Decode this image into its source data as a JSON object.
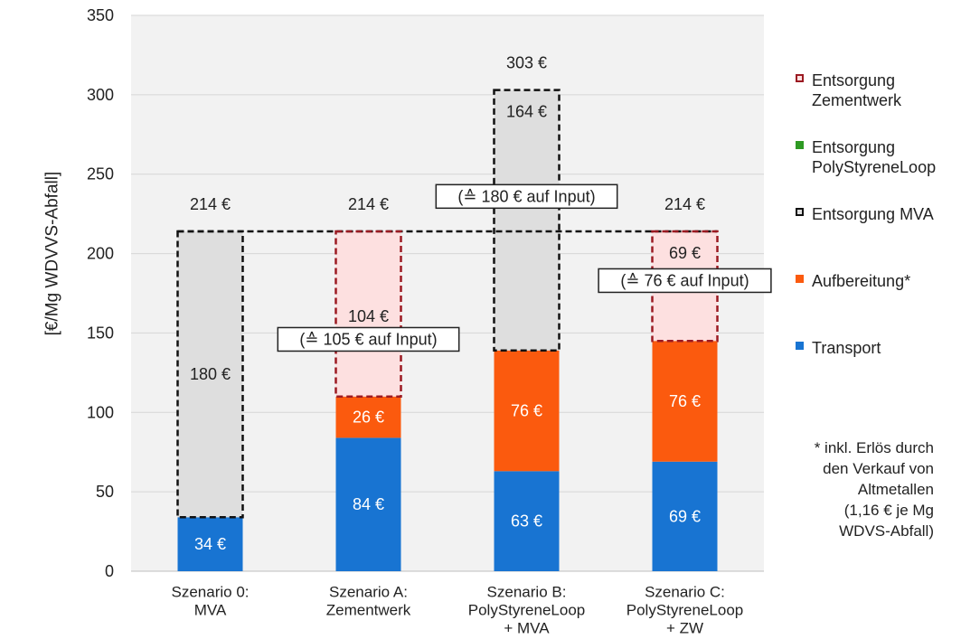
{
  "chart_data": {
    "type": "bar",
    "stacked": true,
    "ylabel": "[€/Mg WDVVS-Abfall]",
    "ylim": [
      0,
      350
    ],
    "yticks": [
      0,
      50,
      100,
      150,
      200,
      250,
      300,
      350
    ],
    "grid": true,
    "legend_position": "right",
    "categories": [
      [
        "Szenario 0:",
        "MVA"
      ],
      [
        "Szenario A:",
        "Zementwerk"
      ],
      [
        "Szenario B:",
        "PolyStyreneLoop",
        "+ MVA"
      ],
      [
        "Szenario C:",
        "PolyStyreneLoop",
        "+ ZW"
      ]
    ],
    "totals": [
      "214 €",
      "214 €",
      "303 €",
      "214 €"
    ],
    "reference_line": 214,
    "series": [
      {
        "key": "transport",
        "name": "Transport",
        "color": "#1874d2",
        "style": "solid",
        "values": [
          34,
          84,
          63,
          69
        ],
        "labels": [
          "34 €",
          "84 €",
          "63 €",
          "69 €"
        ]
      },
      {
        "key": "aufbereitung",
        "name": "Aufbereitung*",
        "color": "#fb5a0e",
        "style": "solid",
        "values": [
          0,
          26,
          76,
          76
        ],
        "labels": [
          "",
          "26 €",
          "76 €",
          "76 €"
        ]
      },
      {
        "key": "mva",
        "name": "Entsorgung MVA",
        "color": "#dedede",
        "border": "#111111",
        "style": "dashed",
        "values": [
          180,
          0,
          164,
          0
        ],
        "labels": [
          "180 €",
          "",
          "164 €",
          ""
        ]
      },
      {
        "key": "psl",
        "name": "Entsorgung PolyStyreneLoop",
        "color": "#2e9a23",
        "style": "solid",
        "values": [
          0,
          0,
          0,
          0
        ],
        "labels": [
          "",
          "",
          "",
          ""
        ]
      },
      {
        "key": "zement",
        "name": "Entsorgung Zementwerk",
        "color": "#fde0e0",
        "border": "#9b1a22",
        "style": "dashed",
        "values": [
          0,
          104,
          0,
          69
        ],
        "labels": [
          "",
          "104 €",
          "",
          "69 €"
        ]
      }
    ],
    "input_notes": [
      "",
      "(≙ 105 € auf Input)",
      "(≙ 180 € auf Input)",
      "(≙ 76 € auf Input)"
    ],
    "footnote": "* inkl. Erlös durch\nden Verkauf von\nAltmetallen\n(1,16 € je Mg\nWDVS-Abfall)"
  },
  "legend": [
    {
      "name": "Entsorgung Zementwerk",
      "lines": [
        "Entsorgung",
        "Zementwerk"
      ],
      "color": "#fde0e0",
      "border": "#9b1a22",
      "style": "dashed"
    },
    {
      "name": "Entsorgung PolyStyreneLoop",
      "lines": [
        "Entsorgung",
        "PolyStyreneLoop"
      ],
      "color": "#2e9a23",
      "border": "#2e9a23",
      "style": "solid"
    },
    {
      "name": "Entsorgung MVA",
      "lines": [
        "Entsorgung MVA"
      ],
      "color": "#dedede",
      "border": "#111111",
      "style": "dashed"
    },
    {
      "name": "Aufbereitung*",
      "lines": [
        "Aufbereitung*"
      ],
      "color": "#fb5a0e",
      "border": "#fb5a0e",
      "style": "solid"
    },
    {
      "name": "Transport",
      "lines": [
        "Transport"
      ],
      "color": "#1874d2",
      "border": "#1874d2",
      "style": "solid"
    }
  ]
}
